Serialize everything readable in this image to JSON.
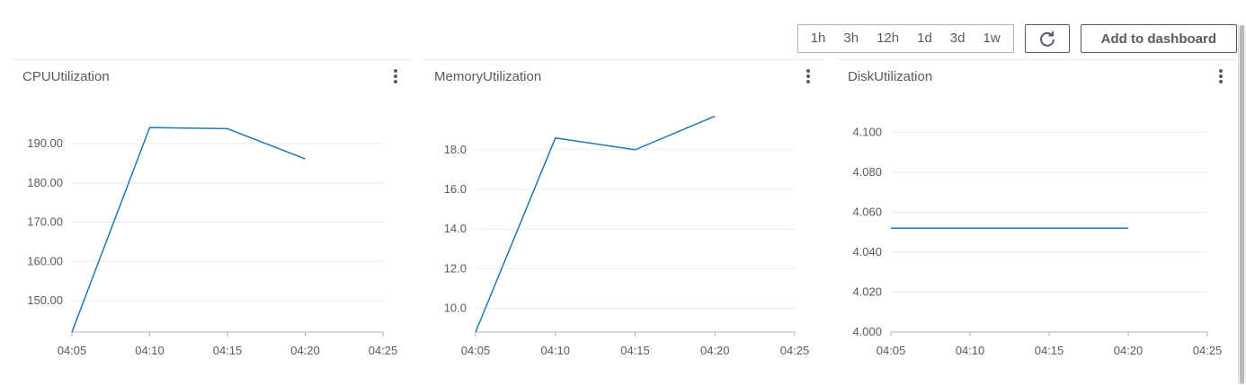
{
  "toolbar": {
    "ranges": [
      "1h",
      "3h",
      "12h",
      "1d",
      "3d",
      "1w"
    ],
    "refresh_icon": "refresh-icon",
    "add_label": "Add to dashboard"
  },
  "colors": {
    "line": "#1f77b4",
    "grid": "#e9ebed",
    "axis": "#aab7b8"
  },
  "panels": [
    {
      "title": "CPUUtilization",
      "menu_icon": "kebab-menu-icon"
    },
    {
      "title": "MemoryUtilization",
      "menu_icon": "kebab-menu-icon"
    },
    {
      "title": "DiskUtilization",
      "menu_icon": "kebab-menu-icon"
    }
  ],
  "chart_data": [
    {
      "type": "line",
      "title": "CPUUtilization",
      "x": [
        "04:05",
        "04:10",
        "04:15",
        "04:20"
      ],
      "xticks": [
        "04:05",
        "04:10",
        "04:15",
        "04:20",
        "04:25"
      ],
      "yticks": [
        "150.00",
        "160.00",
        "170.00",
        "180.00",
        "190.00"
      ],
      "ylim": [
        142,
        198
      ],
      "series": [
        {
          "values": [
            142,
            194.1,
            193.8,
            186.1
          ]
        }
      ]
    },
    {
      "type": "line",
      "title": "MemoryUtilization",
      "x": [
        "04:05",
        "04:10",
        "04:15",
        "04:20"
      ],
      "xticks": [
        "04:05",
        "04:10",
        "04:15",
        "04:20",
        "04:25"
      ],
      "yticks": [
        "10.0",
        "12.0",
        "14.0",
        "16.0",
        "18.0"
      ],
      "ylim": [
        8.8,
        19.9
      ],
      "series": [
        {
          "values": [
            8.8,
            18.6,
            18.0,
            19.7
          ]
        }
      ]
    },
    {
      "type": "line",
      "title": "DiskUtilization",
      "x": [
        "04:05",
        "04:10",
        "04:15",
        "04:20"
      ],
      "xticks": [
        "04:05",
        "04:10",
        "04:15",
        "04:20",
        "04:25"
      ],
      "yticks": [
        "4.000",
        "4.020",
        "4.040",
        "4.060",
        "4.080",
        "4.100"
      ],
      "ylim": [
        4.0,
        4.11
      ],
      "series": [
        {
          "values": [
            4.052,
            4.052,
            4.052,
            4.052
          ]
        }
      ]
    }
  ]
}
